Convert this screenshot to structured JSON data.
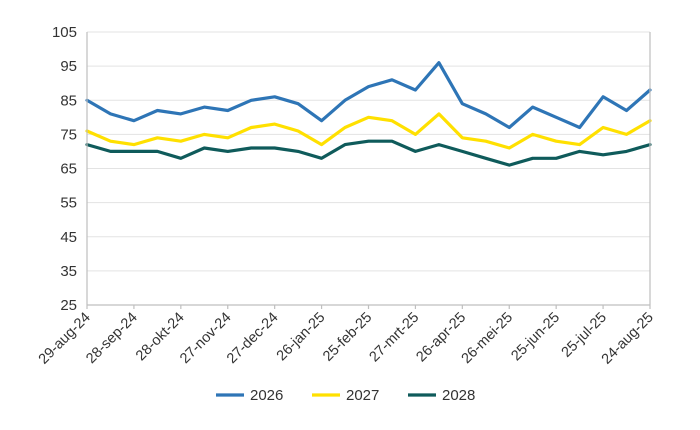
{
  "chart_data": {
    "type": "line",
    "ylim": [
      25,
      105
    ],
    "y_ticks": [
      25,
      35,
      45,
      55,
      65,
      75,
      85,
      95,
      105
    ],
    "x_tick_labels": [
      "29-aug-24",
      "28-sep-24",
      "28-okt-24",
      "27-nov-24",
      "27-dec-24",
      "26-jan-25",
      "25-feb-25",
      "27-mrt-25",
      "26-apr-25",
      "26-mei-25",
      "25-jun-25",
      "25-jul-25",
      "24-aug-25"
    ],
    "grid": true,
    "legend_position": "bottom",
    "x": [
      0,
      15,
      30,
      45,
      60,
      75,
      90,
      105,
      120,
      135,
      150,
      165,
      180,
      195,
      210,
      225,
      240,
      255,
      270,
      285,
      300,
      315,
      330,
      345,
      360
    ],
    "series": [
      {
        "name": "2026",
        "color": "#2e75b6",
        "values": [
          85,
          81,
          79,
          82,
          81,
          83,
          82,
          85,
          86,
          84,
          79,
          85,
          89,
          91,
          88,
          96,
          84,
          81,
          77,
          83,
          80,
          77,
          86,
          82,
          88
        ]
      },
      {
        "name": "2027",
        "color": "#ffe000",
        "values": [
          76,
          73,
          72,
          74,
          73,
          75,
          74,
          77,
          78,
          76,
          72,
          77,
          80,
          79,
          75,
          81,
          74,
          73,
          71,
          75,
          73,
          72,
          77,
          75,
          79
        ]
      },
      {
        "name": "2028",
        "color": "#0f5b5b",
        "values": [
          72,
          70,
          70,
          70,
          68,
          71,
          70,
          71,
          71,
          70,
          68,
          72,
          73,
          73,
          70,
          72,
          70,
          68,
          66,
          68,
          68,
          70,
          69,
          70,
          72
        ]
      }
    ]
  }
}
